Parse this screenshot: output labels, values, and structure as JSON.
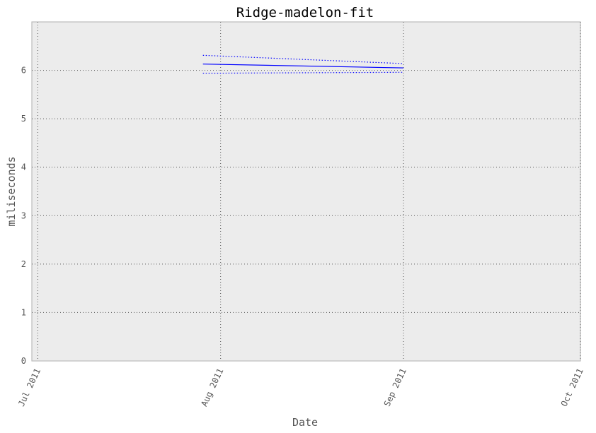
{
  "chart_data": {
    "type": "line",
    "title": "Ridge-madelon-fit",
    "xlabel": "Date",
    "ylabel": "miliseconds",
    "x_axis": {
      "type": "date",
      "range": [
        "2011-06-30",
        "2011-10-01"
      ],
      "ticks": [
        {
          "date": "2011-07-01",
          "label": "Jul 2011"
        },
        {
          "date": "2011-08-01",
          "label": "Aug 2011"
        },
        {
          "date": "2011-09-01",
          "label": "Sep 2011"
        },
        {
          "date": "2011-10-01",
          "label": "Oct 2011"
        }
      ],
      "tick_rotation": "rotated 65 degrees"
    },
    "ylim": [
      0,
      7
    ],
    "y_ticks": [
      0,
      1,
      2,
      3,
      4,
      5,
      6
    ],
    "grid": true,
    "series": [
      {
        "style": "solid",
        "color": "#0000ff",
        "points": [
          {
            "x": "2011-07-29",
            "y": 6.13
          },
          {
            "x": "2011-09-01",
            "y": 6.05
          }
        ]
      },
      {
        "style": "dotted",
        "color": "#0000ff",
        "points": [
          {
            "x": "2011-07-29",
            "y": 6.31
          },
          {
            "x": "2011-09-01",
            "y": 6.14
          }
        ]
      },
      {
        "style": "dotted",
        "color": "#0000ff",
        "points": [
          {
            "x": "2011-07-29",
            "y": 5.94
          },
          {
            "x": "2011-09-01",
            "y": 5.96
          }
        ]
      }
    ]
  }
}
